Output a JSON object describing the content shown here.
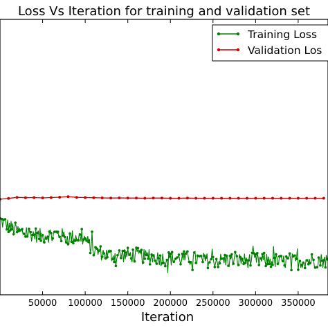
{
  "chart_data": {
    "type": "line",
    "title": "Loss Vs Iteration for training and validation set",
    "xlabel": "Iteration",
    "ylabel": "",
    "xlim": [
      0,
      385000
    ],
    "ylim": [
      0,
      1.6
    ],
    "x_ticks": [
      {
        "value": 50000,
        "label": "50000"
      },
      {
        "value": 100000,
        "label": "100000"
      },
      {
        "value": 150000,
        "label": "150000"
      },
      {
        "value": 200000,
        "label": "200000"
      },
      {
        "value": 250000,
        "label": "250000"
      },
      {
        "value": 300000,
        "label": "300000"
      },
      {
        "value": 350000,
        "label": "350000"
      }
    ],
    "grid": false,
    "legend_position": "top-right",
    "series": [
      {
        "name": "Training Loss",
        "color": "#008000",
        "x": [
          0,
          10000,
          20000,
          30000,
          40000,
          50000,
          60000,
          70000,
          80000,
          90000,
          100000,
          110000,
          120000,
          130000,
          140000,
          150000,
          160000,
          170000,
          180000,
          190000,
          200000,
          210000,
          220000,
          230000,
          240000,
          250000,
          260000,
          270000,
          280000,
          290000,
          300000,
          310000,
          320000,
          330000,
          340000,
          350000,
          360000,
          370000,
          380000
        ],
        "y": [
          0.43,
          0.4,
          0.37,
          0.36,
          0.35,
          0.34,
          0.35,
          0.35,
          0.33,
          0.34,
          0.32,
          0.26,
          0.24,
          0.23,
          0.23,
          0.23,
          0.23,
          0.22,
          0.22,
          0.21,
          0.21,
          0.21,
          0.21,
          0.21,
          0.2,
          0.2,
          0.2,
          0.2,
          0.2,
          0.2,
          0.2,
          0.2,
          0.2,
          0.19,
          0.2,
          0.19,
          0.2,
          0.2,
          0.2
        ],
        "noise_amplitude": 0.045
      },
      {
        "name": "Validation Loss",
        "color": "#cc0000",
        "x": [
          0,
          10000,
          20000,
          30000,
          40000,
          50000,
          60000,
          70000,
          80000,
          90000,
          100000,
          110000,
          120000,
          130000,
          140000,
          150000,
          160000,
          170000,
          180000,
          190000,
          200000,
          210000,
          220000,
          230000,
          240000,
          250000,
          260000,
          270000,
          280000,
          290000,
          300000,
          310000,
          320000,
          330000,
          340000,
          350000,
          360000,
          370000,
          380000
        ],
        "y": [
          0.555,
          0.56,
          0.566,
          0.564,
          0.565,
          0.563,
          0.565,
          0.567,
          0.57,
          0.566,
          0.565,
          0.564,
          0.563,
          0.562,
          0.563,
          0.562,
          0.562,
          0.561,
          0.562,
          0.562,
          0.561,
          0.561,
          0.562,
          0.561,
          0.561,
          0.561,
          0.561,
          0.561,
          0.561,
          0.561,
          0.561,
          0.561,
          0.561,
          0.561,
          0.561,
          0.561,
          0.561,
          0.561,
          0.561
        ]
      }
    ],
    "legend_labels": [
      "Training Loss",
      "Validation Los"
    ]
  }
}
